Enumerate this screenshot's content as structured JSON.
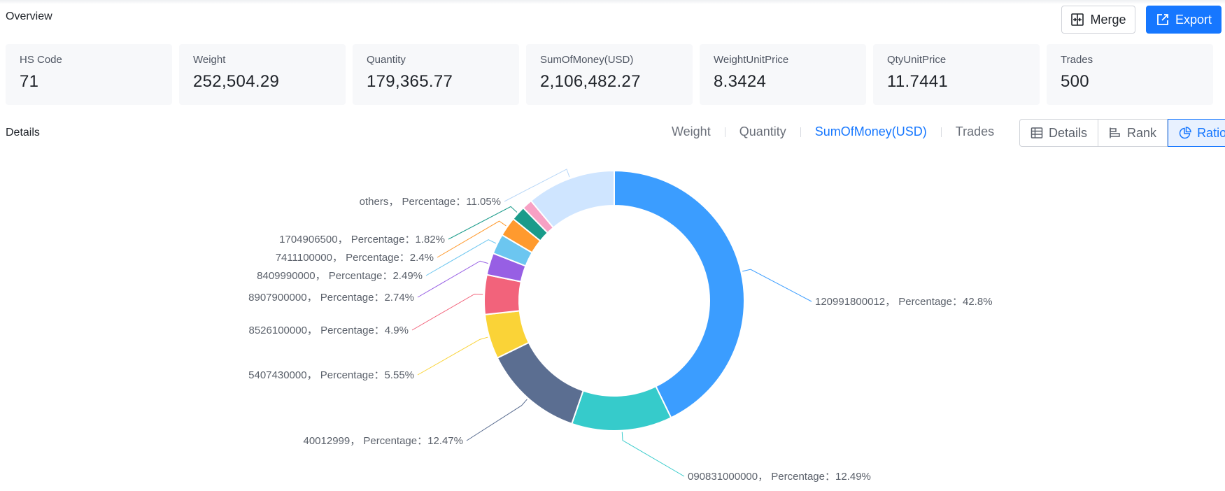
{
  "overview": {
    "title": "Overview",
    "merge_label": "Merge",
    "export_label": "Export"
  },
  "stats": [
    {
      "label": "HS Code",
      "value": "71"
    },
    {
      "label": "Weight",
      "value": "252,504.29"
    },
    {
      "label": "Quantity",
      "value": "179,365.77"
    },
    {
      "label": "SumOfMoney(USD)",
      "value": "2,106,482.27"
    },
    {
      "label": "WeightUnitPrice",
      "value": "8.3424"
    },
    {
      "label": "QtyUnitPrice",
      "value": "11.7441"
    },
    {
      "label": "Trades",
      "value": "500"
    }
  ],
  "details": {
    "title": "Details",
    "metric_tabs": [
      {
        "label": "Weight",
        "active": false
      },
      {
        "label": "Quantity",
        "active": false
      },
      {
        "label": "SumOfMoney(USD)",
        "active": true
      },
      {
        "label": "Trades",
        "active": false
      }
    ],
    "view_buttons": [
      {
        "label": "Details",
        "icon": "table-icon",
        "active": false
      },
      {
        "label": "Rank",
        "icon": "bar-rank-icon",
        "active": false
      },
      {
        "label": "Ratio",
        "icon": "pie-icon",
        "active": true
      }
    ]
  },
  "colors": {
    "accent": "#1677ff"
  },
  "chart_data": {
    "type": "pie",
    "variant": "donut",
    "slices": [
      {
        "name": "120991800012",
        "value": 42.8,
        "label": "120991800012，  Percentage：42.8%",
        "color": "#3b9dff"
      },
      {
        "name": "090831000000",
        "value": 12.49,
        "label": "090831000000，  Percentage：12.49%",
        "color": "#36cbcb"
      },
      {
        "name": "40012999",
        "value": 12.47,
        "label": "40012999，  Percentage：12.47%",
        "color": "#5b6e91"
      },
      {
        "name": "5407430000",
        "value": 5.55,
        "label": "5407430000，  Percentage：5.55%",
        "color": "#fad337"
      },
      {
        "name": "8526100000",
        "value": 4.9,
        "label": "8526100000，  Percentage：4.9%",
        "color": "#f2637b"
      },
      {
        "name": "8907900000",
        "value": 2.74,
        "label": "8907900000，  Percentage：2.74%",
        "color": "#975fe4"
      },
      {
        "name": "8409990000",
        "value": 2.49,
        "label": "8409990000，  Percentage：2.49%",
        "color": "#6cc6f0"
      },
      {
        "name": "7411100000",
        "value": 2.4,
        "label": "7411100000，  Percentage：2.4%",
        "color": "#ff9a2e"
      },
      {
        "name": "1704906500",
        "value": 1.82,
        "label": "1704906500，  Percentage：1.82%",
        "color": "#1a9b8a"
      },
      {
        "name": "others-small",
        "value": 1.29,
        "label": "",
        "color": "#f7a1c4"
      },
      {
        "name": "others",
        "value": 11.05,
        "label": "others，  Percentage：11.05%",
        "color": "#cfe5ff"
      }
    ]
  }
}
